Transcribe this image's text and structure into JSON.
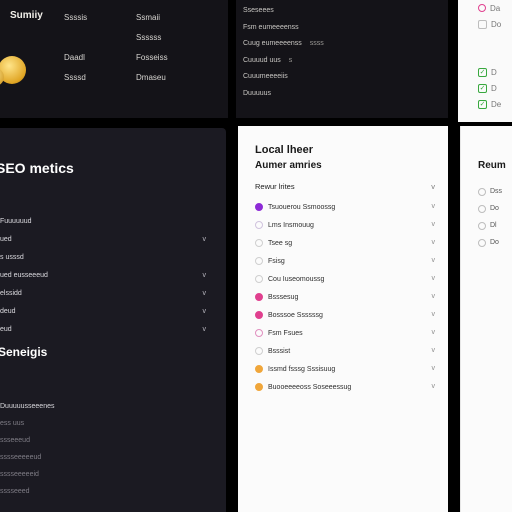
{
  "colors": {
    "dark_panel": "#1b1a22",
    "light_panel": "#fbfbfb",
    "accent_gold": "#e0a524",
    "accent_purple": "#8d2bd6",
    "accent_pink": "#e0408f",
    "accent_orange": "#f0a63a",
    "check_green": "#38a83e"
  },
  "top": {
    "brand": "Sumiiy",
    "brand_sub": "",
    "col1": [
      "Ssssis",
      "",
      "Daadl",
      "Ssssd"
    ],
    "col2": [
      "Ssmaii",
      "Ssssss",
      "Fosseiss",
      "Dmaseu"
    ],
    "mid": [
      {
        "label": "Sseseees",
        "extra": ""
      },
      {
        "label": "Fsm eumeeeenss",
        "extra": ""
      },
      {
        "label": "Cuug eumeeeenss",
        "extra": "ssss"
      },
      {
        "label": "Cuuuud  uus",
        "extra": "s"
      },
      {
        "label": "Cuuumeeeeiis",
        "extra": ""
      },
      {
        "label": "Duuuuus",
        "extra": ""
      }
    ],
    "right_items": [
      {
        "icon": "pink-circle-icon",
        "label": "Da"
      },
      {
        "icon": "square-icon",
        "label": "Do"
      },
      {
        "icon": "check-icon",
        "label": "D"
      },
      {
        "icon": "check-icon",
        "label": "D"
      },
      {
        "icon": "check-icon",
        "label": "De"
      }
    ]
  },
  "seo": {
    "title": "SEO metics",
    "items": [
      {
        "label": "Fuuuuuud",
        "chev": ""
      },
      {
        "label": "ued",
        "chev": "v"
      },
      {
        "label": "s usssd",
        "chev": ""
      },
      {
        "label": "ued eusseeeud",
        "chev": "v"
      },
      {
        "label": "elssidd",
        "chev": "v"
      },
      {
        "label": "deud",
        "chev": "v"
      },
      {
        "label": "eud",
        "chev": "v"
      }
    ]
  },
  "sec2": {
    "title": "Seneigis",
    "items": [
      "Duuuuusseeenes",
      "ess uus",
      "ssseeeud",
      "sssseeeeeud",
      "sssseeeeeid",
      "sssseeed"
    ]
  },
  "local": {
    "title": "Local lheer",
    "subtitle": "Aumer amries",
    "head": "Rewur lrites",
    "items": [
      {
        "label": "Tsuouerou Ssmoossg",
        "dot": "#8d2bd6",
        "filled": true
      },
      {
        "label": "Lms Insmouug",
        "dot": "#d0c3de",
        "filled": false
      },
      {
        "label": "Tsee sg",
        "dot": "#cfcfcf",
        "filled": false
      },
      {
        "label": "Fsisg",
        "dot": "#cfcfcf",
        "filled": false
      },
      {
        "label": "Cou Iuseomoussg",
        "dot": "#cfcfcf",
        "filled": false
      },
      {
        "label": "Bsssesug",
        "dot": "#e0408f",
        "filled": true
      },
      {
        "label": "Bosssoe Ssssssg",
        "dot": "#e0408f",
        "filled": true
      },
      {
        "label": "Fsm Fsues",
        "dot": "#e08fbf",
        "filled": false
      },
      {
        "label": "Bsssist",
        "dot": "#cfcfcf",
        "filled": false
      },
      {
        "label": "Issmd fsssg Sssisuug",
        "dot": "#f0a63a",
        "filled": true
      },
      {
        "label": "Buooeeeeoss Soseeessug",
        "dot": "#f0a63a",
        "filled": true
      }
    ]
  },
  "right": {
    "title": "Reum",
    "items": [
      "Dss",
      "Do",
      "Dl",
      "Do"
    ]
  }
}
